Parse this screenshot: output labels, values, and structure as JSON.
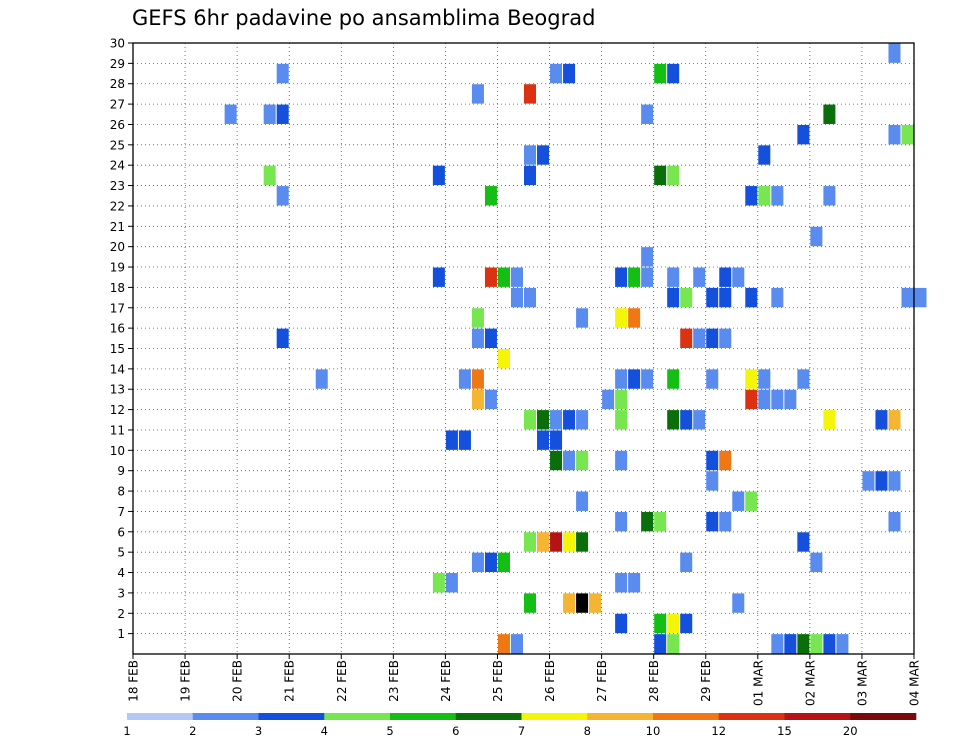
{
  "chart_data": {
    "type": "heatmap",
    "title": "GEFS 6hr padavine po ansamblima Beograd",
    "x_tick_labels": [
      "18 FEB",
      "19 FEB",
      "20 FEB",
      "21 FEB",
      "22 FEB",
      "23 FEB",
      "24 FEB",
      "25 FEB",
      "26 FEB",
      "27 FEB",
      "28 FEB",
      "29 FEB",
      "01 MAR",
      "02 MAR",
      "03 MAR",
      "04 MAR"
    ],
    "y_tick_labels": [
      "1",
      "2",
      "3",
      "4",
      "5",
      "6",
      "7",
      "8",
      "9",
      "10",
      "11",
      "12",
      "13",
      "14",
      "15",
      "16",
      "17",
      "18",
      "19",
      "20",
      "21",
      "22",
      "23",
      "24",
      "25",
      "26",
      "27",
      "28",
      "29",
      "30"
    ],
    "x_range_days": [
      0,
      15
    ],
    "y_range": [
      0,
      30
    ],
    "x_step_days": 0.25,
    "grid": true,
    "legend": {
      "placement": "bottom",
      "labels": [
        "1",
        "2",
        "3",
        "4",
        "5",
        "6",
        "7",
        "8",
        "10",
        "12",
        "15",
        "20"
      ],
      "colors": [
        "#b4c8f5",
        "#5a8cf0",
        "#1450dc",
        "#78e650",
        "#14be14",
        "#0a6e0a",
        "#f5f50a",
        "#f5b432",
        "#f07814",
        "#dc3214",
        "#b41414",
        "#780a0a"
      ]
    },
    "cells": [
      [
        7.0,
        0,
        8
      ],
      [
        7.25,
        0,
        1
      ],
      [
        10.0,
        0,
        2
      ],
      [
        10.25,
        0,
        3
      ],
      [
        12.25,
        0,
        1
      ],
      [
        12.5,
        0,
        2
      ],
      [
        12.75,
        0,
        5
      ],
      [
        13.0,
        0,
        3
      ],
      [
        13.25,
        0,
        2
      ],
      [
        13.5,
        0,
        1
      ],
      [
        9.25,
        1,
        2
      ],
      [
        10.0,
        1,
        4
      ],
      [
        10.25,
        1,
        6
      ],
      [
        10.5,
        1,
        2
      ],
      [
        7.5,
        2,
        4
      ],
      [
        8.25,
        2,
        7
      ],
      [
        8.5,
        2,
        12
      ],
      [
        8.75,
        2,
        7
      ],
      [
        11.5,
        2,
        1
      ],
      [
        5.75,
        3,
        3
      ],
      [
        6.0,
        3,
        1
      ],
      [
        9.25,
        3,
        1
      ],
      [
        9.5,
        3,
        1
      ],
      [
        6.5,
        4,
        1
      ],
      [
        6.75,
        4,
        2
      ],
      [
        7.0,
        4,
        4
      ],
      [
        10.5,
        4,
        1
      ],
      [
        13.0,
        4,
        1
      ],
      [
        7.5,
        5,
        3
      ],
      [
        7.75,
        5,
        7
      ],
      [
        8.0,
        5,
        10
      ],
      [
        8.25,
        5,
        6
      ],
      [
        8.5,
        5,
        5
      ],
      [
        12.75,
        5,
        2
      ],
      [
        9.25,
        6,
        1
      ],
      [
        9.75,
        6,
        5
      ],
      [
        10.0,
        6,
        3
      ],
      [
        11.0,
        6,
        2
      ],
      [
        11.25,
        6,
        1
      ],
      [
        14.5,
        6,
        1
      ],
      [
        8.5,
        7,
        1
      ],
      [
        11.5,
        7,
        1
      ],
      [
        11.75,
        7,
        3
      ],
      [
        11.0,
        8,
        1
      ],
      [
        14.0,
        8,
        1
      ],
      [
        14.25,
        8,
        2
      ],
      [
        14.5,
        8,
        1
      ],
      [
        8.0,
        9,
        5
      ],
      [
        8.25,
        9,
        1
      ],
      [
        8.5,
        9,
        3
      ],
      [
        9.25,
        9,
        1
      ],
      [
        11.0,
        9,
        2
      ],
      [
        11.25,
        9,
        8
      ],
      [
        6.0,
        10,
        2
      ],
      [
        6.25,
        10,
        2
      ],
      [
        7.75,
        10,
        2
      ],
      [
        8.0,
        10,
        2
      ],
      [
        7.5,
        11,
        3
      ],
      [
        7.75,
        11,
        5
      ],
      [
        8.0,
        11,
        1
      ],
      [
        8.25,
        11,
        2
      ],
      [
        8.5,
        11,
        1
      ],
      [
        9.25,
        11,
        3
      ],
      [
        10.25,
        11,
        5
      ],
      [
        10.5,
        11,
        2
      ],
      [
        10.75,
        11,
        1
      ],
      [
        13.25,
        11,
        6
      ],
      [
        14.25,
        11,
        2
      ],
      [
        14.5,
        11,
        7
      ],
      [
        6.5,
        12,
        7
      ],
      [
        6.75,
        12,
        1
      ],
      [
        9.0,
        12,
        1
      ],
      [
        9.25,
        12,
        3
      ],
      [
        11.75,
        12,
        9
      ],
      [
        12.0,
        12,
        1
      ],
      [
        12.25,
        12,
        1
      ],
      [
        12.5,
        12,
        1
      ],
      [
        3.5,
        13,
        1
      ],
      [
        6.25,
        13,
        1
      ],
      [
        6.5,
        13,
        8
      ],
      [
        9.25,
        13,
        1
      ],
      [
        9.5,
        13,
        2
      ],
      [
        9.75,
        13,
        1
      ],
      [
        10.25,
        13,
        4
      ],
      [
        11.0,
        13,
        1
      ],
      [
        11.75,
        13,
        6
      ],
      [
        12.0,
        13,
        1
      ],
      [
        12.75,
        13,
        1
      ],
      [
        7.0,
        14,
        6
      ],
      [
        2.75,
        15,
        2
      ],
      [
        6.5,
        15,
        1
      ],
      [
        6.75,
        15,
        2
      ],
      [
        10.5,
        15,
        9
      ],
      [
        10.75,
        15,
        1
      ],
      [
        11.0,
        15,
        2
      ],
      [
        11.25,
        15,
        1
      ],
      [
        6.5,
        16,
        3
      ],
      [
        8.5,
        16,
        1
      ],
      [
        9.25,
        16,
        6
      ],
      [
        9.5,
        16,
        8
      ],
      [
        7.25,
        17,
        1
      ],
      [
        7.5,
        17,
        1
      ],
      [
        10.25,
        17,
        2
      ],
      [
        10.5,
        17,
        3
      ],
      [
        11.0,
        17,
        2
      ],
      [
        11.25,
        17,
        2
      ],
      [
        11.75,
        17,
        2
      ],
      [
        12.25,
        17,
        1
      ],
      [
        14.75,
        17,
        1
      ],
      [
        15.0,
        17,
        1
      ],
      [
        5.75,
        18,
        2
      ],
      [
        6.75,
        18,
        9
      ],
      [
        7.0,
        18,
        4
      ],
      [
        7.25,
        18,
        1
      ],
      [
        9.25,
        18,
        2
      ],
      [
        9.5,
        18,
        4
      ],
      [
        9.75,
        18,
        1
      ],
      [
        10.25,
        18,
        1
      ],
      [
        10.75,
        18,
        1
      ],
      [
        11.25,
        18,
        2
      ],
      [
        11.5,
        18,
        1
      ],
      [
        9.75,
        19,
        1
      ],
      [
        13.0,
        20,
        1
      ],
      [
        2.75,
        22,
        1
      ],
      [
        6.75,
        22,
        4
      ],
      [
        11.75,
        22,
        2
      ],
      [
        12.0,
        22,
        3
      ],
      [
        12.25,
        22,
        1
      ],
      [
        13.25,
        22,
        1
      ],
      [
        2.5,
        23,
        3
      ],
      [
        5.75,
        23,
        2
      ],
      [
        7.5,
        23,
        2
      ],
      [
        10.0,
        23,
        5
      ],
      [
        10.25,
        23,
        3
      ],
      [
        7.5,
        24,
        1
      ],
      [
        7.75,
        24,
        2
      ],
      [
        12.0,
        24,
        2
      ],
      [
        12.75,
        25,
        2
      ],
      [
        14.5,
        25,
        1
      ],
      [
        14.75,
        25,
        3
      ],
      [
        1.75,
        26,
        1
      ],
      [
        2.5,
        26,
        1
      ],
      [
        2.75,
        26,
        2
      ],
      [
        9.75,
        26,
        1
      ],
      [
        13.25,
        26,
        5
      ],
      [
        6.5,
        27,
        1
      ],
      [
        7.5,
        27,
        9
      ],
      [
        2.75,
        28,
        1
      ],
      [
        8.0,
        28,
        1
      ],
      [
        8.25,
        28,
        2
      ],
      [
        10.0,
        28,
        4
      ],
      [
        10.25,
        28,
        2
      ],
      [
        14.5,
        29,
        1
      ]
    ]
  }
}
